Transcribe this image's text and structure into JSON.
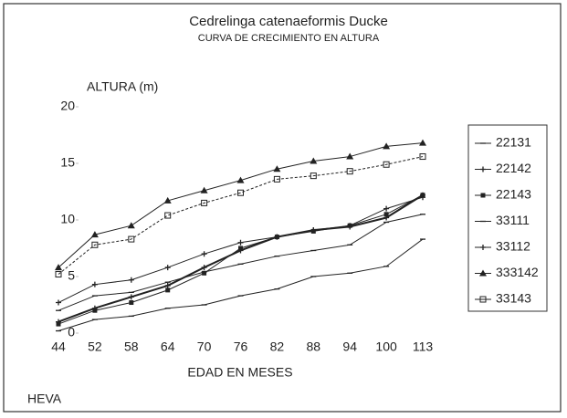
{
  "chart_data": {
    "type": "line",
    "title": "Cedrelinga catenaeformis Ducke",
    "subtitle": "CURVA DE CRECIMIENTO EN ALTURA",
    "y_label": "ALTURA (m)",
    "x_label": "EDAD EN MESES",
    "note": "HEVA",
    "categories": [
      "44",
      "52",
      "58",
      "64",
      "70",
      "76",
      "82",
      "88",
      "94",
      "100",
      "113"
    ],
    "ylim": [
      0,
      20
    ],
    "yticks": [
      0,
      5,
      10,
      15,
      20
    ],
    "series": [
      {
        "name": "22131",
        "color": "#222222",
        "values": [
          0.2,
          1.2,
          1.5,
          2.2,
          2.5,
          3.3,
          3.9,
          5.0,
          5.3,
          5.9,
          8.3
        ]
      },
      {
        "name": "22142",
        "color": "#222222",
        "values": [
          2.7,
          4.3,
          4.7,
          5.8,
          7.0,
          8.0,
          8.5,
          9.1,
          9.5,
          11.0,
          12.0
        ]
      },
      {
        "name": "22143",
        "color": "#222222",
        "values": [
          0.8,
          2.0,
          2.7,
          3.8,
          5.3,
          7.5,
          8.5,
          9.0,
          9.5,
          10.5,
          12.2
        ]
      },
      {
        "name": "33111",
        "color": "#222222",
        "values": [
          2.0,
          3.3,
          3.6,
          4.5,
          5.4,
          6.1,
          6.8,
          7.3,
          7.8,
          9.8,
          10.5
        ]
      },
      {
        "name": "33112",
        "color": "#222222",
        "values": [
          1.0,
          2.2,
          3.2,
          4.2,
          5.8,
          7.3,
          8.5,
          9.1,
          9.4,
          10.2,
          12.2
        ]
      },
      {
        "name": "333142",
        "color": "#222222",
        "values": [
          5.8,
          8.7,
          9.5,
          11.7,
          12.6,
          13.5,
          14.5,
          15.2,
          15.6,
          16.5,
          16.8
        ]
      },
      {
        "name": "33143",
        "color": "#222222",
        "values": [
          5.2,
          7.8,
          8.3,
          10.4,
          11.5,
          12.4,
          13.6,
          13.9,
          14.3,
          14.9,
          15.6
        ]
      }
    ]
  }
}
